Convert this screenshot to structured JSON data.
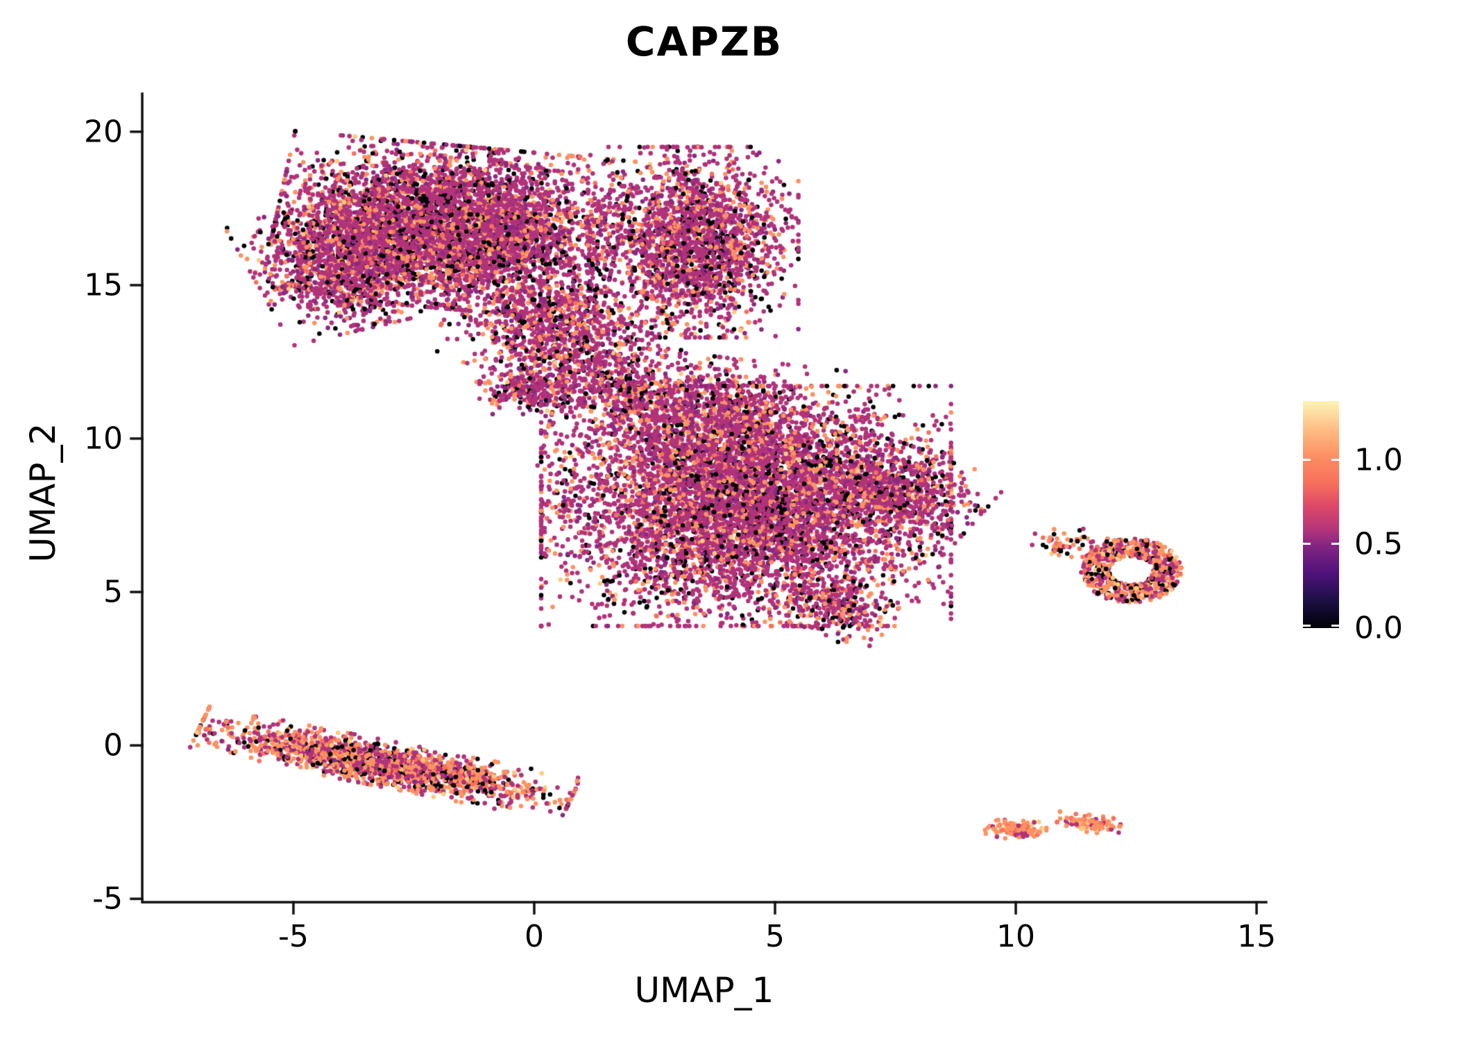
{
  "title": "CAPZB",
  "chart_data": {
    "type": "scatter",
    "title": "CAPZB",
    "xlabel": "UMAP_1",
    "ylabel": "UMAP_2",
    "xlim": [
      -8.14,
      15.2
    ],
    "ylim": [
      -5.11,
      21.24
    ],
    "x_ticks": [
      -5,
      0,
      5,
      10,
      15
    ],
    "x_tick_labels": [
      "-5",
      "0",
      "5",
      "10",
      "15"
    ],
    "y_ticks": [
      20,
      15,
      10,
      5,
      0,
      -5
    ],
    "y_tick_labels": [
      "20",
      "15",
      "10",
      "5",
      "0",
      "-5"
    ],
    "grid": false,
    "legend_position": "right",
    "colorbar": {
      "colormap": "magma",
      "vmin": 0.0,
      "vmax": 1.35,
      "ticks": [
        "1.0",
        "0.5",
        "0.0"
      ],
      "tick_values": [
        1.0,
        0.5,
        0.0
      ],
      "stops": [
        {
          "pos": 0,
          "color": "#000004"
        },
        {
          "pos": 12,
          "color": "#1c1044"
        },
        {
          "pos": 24,
          "color": "#4f127b"
        },
        {
          "pos": 36,
          "color": "#812581"
        },
        {
          "pos": 44,
          "color": "#b73779"
        },
        {
          "pos": 54,
          "color": "#de4968"
        },
        {
          "pos": 64,
          "color": "#f7705c"
        },
        {
          "pos": 74,
          "color": "#fc8961"
        },
        {
          "pos": 86,
          "color": "#feb77e"
        },
        {
          "pos": 100,
          "color": "#fcf4b6"
        }
      ]
    },
    "palette": {
      "black": "#000004",
      "deep_purple": "#8c2981",
      "magenta": "#b13379",
      "orange": "#fc9262",
      "salmon": "#f7705c",
      "light": "#fdc97e"
    },
    "mixes": {
      "default": {
        "magenta": 0.57,
        "deep_purple": 0.1,
        "orange": 0.17,
        "black": 0.12,
        "salmon": 0.03,
        "light": 0.01
      },
      "strip": {
        "orange": 0.4,
        "magenta": 0.33,
        "black": 0.12,
        "salmon": 0.08,
        "light": 0.04,
        "deep_purple": 0.03
      },
      "ring": {
        "orange": 0.36,
        "magenta": 0.3,
        "black": 0.16,
        "salmon": 0.1,
        "light": 0.08
      },
      "dots": {
        "orange": 0.6,
        "salmon": 0.2,
        "magenta": 0.13,
        "light": 0.07
      }
    },
    "point_radius_px": 3.3,
    "seed": 42,
    "clusters": [
      {
        "name": "top-left-main",
        "n": 5200,
        "cx": -1.8,
        "cy": 16.9,
        "sx": 1.55,
        "sy": 1.15,
        "rot": -8,
        "mix": "default"
      },
      {
        "name": "top-left-west",
        "n": 1200,
        "cx": -4.0,
        "cy": 15.6,
        "sx": 0.8,
        "sy": 0.9,
        "rot": 20,
        "mix": "default"
      },
      {
        "name": "top-right-lobe",
        "n": 2200,
        "cx": 3.3,
        "cy": 16.4,
        "sx": 0.95,
        "sy": 1.35,
        "rot": 0,
        "mix": "default"
      },
      {
        "name": "top-mid-south",
        "n": 900,
        "cx": 0.3,
        "cy": 13.8,
        "sx": 0.9,
        "sy": 0.8,
        "rot": -20,
        "mix": "default"
      },
      {
        "name": "bridge",
        "n": 500,
        "cx": 1.4,
        "cy": 12.2,
        "sx": 0.9,
        "sy": 0.7,
        "rot": -30,
        "mix": "default"
      },
      {
        "name": "bridge-knot",
        "n": 260,
        "cx": -0.1,
        "cy": 11.6,
        "sx": 0.45,
        "sy": 0.35,
        "rot": 0,
        "mix": "default"
      },
      {
        "name": "mid-upper",
        "n": 1400,
        "cx": 3.6,
        "cy": 10.6,
        "sx": 1.4,
        "sy": 0.9,
        "rot": -10,
        "mix": "default"
      },
      {
        "name": "mid-main",
        "n": 6200,
        "cx": 4.4,
        "cy": 7.8,
        "sx": 1.85,
        "sy": 1.7,
        "rot": 0,
        "mix": "default"
      },
      {
        "name": "mid-east",
        "n": 700,
        "cx": 7.6,
        "cy": 8.3,
        "sx": 0.8,
        "sy": 0.6,
        "rot": -30,
        "mix": "default"
      },
      {
        "name": "mid-southeast-tail",
        "n": 260,
        "cx": 6.3,
        "cy": 4.5,
        "sx": 0.55,
        "sy": 0.4,
        "rot": -35,
        "mix": "default"
      },
      {
        "name": "left-strip",
        "n": 1700,
        "cx": -3.1,
        "cy": -0.6,
        "sx": 1.75,
        "sy": 0.32,
        "rot": -17,
        "mix": "strip"
      },
      {
        "name": "right-ring",
        "n": 650,
        "cx": 12.4,
        "cy": 5.7,
        "shape": "ring",
        "r0": 0.45,
        "r1": 1.05,
        "rot": 0,
        "mix": "ring"
      },
      {
        "name": "right-ring-scatter",
        "n": 60,
        "cx": 11.1,
        "cy": 6.6,
        "sx": 0.35,
        "sy": 0.2,
        "rot": 0,
        "mix": "ring"
      },
      {
        "name": "bottom-dot-a",
        "n": 130,
        "cx": 10.0,
        "cy": -2.75,
        "sx": 0.28,
        "sy": 0.13,
        "rot": -5,
        "mix": "dots"
      },
      {
        "name": "bottom-dot-b",
        "n": 110,
        "cx": 11.55,
        "cy": -2.55,
        "sx": 0.3,
        "sy": 0.12,
        "rot": -10,
        "mix": "dots"
      }
    ]
  }
}
